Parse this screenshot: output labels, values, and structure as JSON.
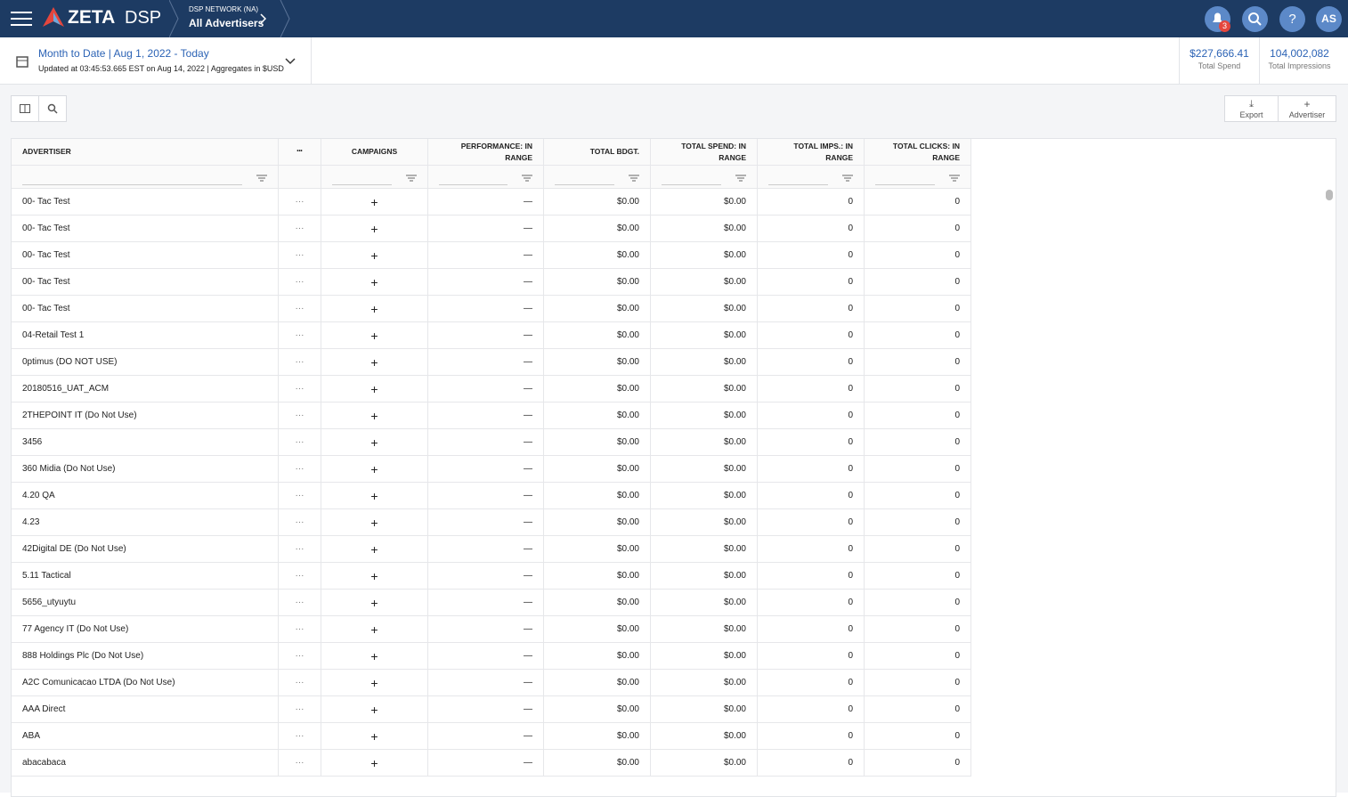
{
  "header": {
    "brand": "ZETA",
    "product": "DSP",
    "network": "DSP NETWORK (NA)",
    "scope": "All Advertisers",
    "notifications": "3",
    "help": "?",
    "avatar": "AS"
  },
  "subheader": {
    "range_name": "Month to Date",
    "range_dates": "Aug 1, 2022 - Today",
    "updated": "Updated at 03:45:53.665 EST on Aug 14, 2022 | Aggregates in $USD",
    "stats": [
      {
        "value": "$227,666.41",
        "label": "Total Spend"
      },
      {
        "value": "104,002,082",
        "label": "Total Impressions"
      }
    ]
  },
  "toolbar": {
    "export": "Export",
    "add": "Advertiser"
  },
  "table": {
    "columns": [
      "ADVERTISER",
      "CAMPAIGNS",
      "PERFORMANCE: IN RANGE",
      "TOTAL BDGT.",
      "TOTAL SPEND: IN RANGE",
      "TOTAL IMPS.: IN RANGE",
      "TOTAL CLICKS: IN RANGE"
    ],
    "rows": [
      [
        "00- Tac Test",
        "—",
        "$0.00",
        "$0.00",
        "0",
        "0"
      ],
      [
        "00- Tac Test",
        "—",
        "$0.00",
        "$0.00",
        "0",
        "0"
      ],
      [
        "00- Tac Test",
        "—",
        "$0.00",
        "$0.00",
        "0",
        "0"
      ],
      [
        "00- Tac Test",
        "—",
        "$0.00",
        "$0.00",
        "0",
        "0"
      ],
      [
        "00- Tac Test",
        "—",
        "$0.00",
        "$0.00",
        "0",
        "0"
      ],
      [
        "04-Retail Test 1",
        "—",
        "$0.00",
        "$0.00",
        "0",
        "0"
      ],
      [
        "0ptimus (DO NOT USE)",
        "—",
        "$0.00",
        "$0.00",
        "0",
        "0"
      ],
      [
        "20180516_UAT_ACM",
        "—",
        "$0.00",
        "$0.00",
        "0",
        "0"
      ],
      [
        "2THEPOINT IT (Do Not Use)",
        "—",
        "$0.00",
        "$0.00",
        "0",
        "0"
      ],
      [
        "3456",
        "—",
        "$0.00",
        "$0.00",
        "0",
        "0"
      ],
      [
        "360 Midia (Do Not Use)",
        "—",
        "$0.00",
        "$0.00",
        "0",
        "0"
      ],
      [
        "4.20 QA",
        "—",
        "$0.00",
        "$0.00",
        "0",
        "0"
      ],
      [
        "4.23",
        "—",
        "$0.00",
        "$0.00",
        "0",
        "0"
      ],
      [
        "42Digital DE (Do Not Use)",
        "—",
        "$0.00",
        "$0.00",
        "0",
        "0"
      ],
      [
        "5.11 Tactical",
        "—",
        "$0.00",
        "$0.00",
        "0",
        "0"
      ],
      [
        "5656_utyuytu",
        "—",
        "$0.00",
        "$0.00",
        "0",
        "0"
      ],
      [
        "77 Agency IT (Do Not Use)",
        "—",
        "$0.00",
        "$0.00",
        "0",
        "0"
      ],
      [
        "888 Holdings Plc (Do Not Use)",
        "—",
        "$0.00",
        "$0.00",
        "0",
        "0"
      ],
      [
        "A2C Comunicacao LTDA (Do Not Use)",
        "—",
        "$0.00",
        "$0.00",
        "0",
        "0"
      ],
      [
        "AAA Direct",
        "—",
        "$0.00",
        "$0.00",
        "0",
        "0"
      ],
      [
        "ABA",
        "—",
        "$0.00",
        "$0.00",
        "0",
        "0"
      ],
      [
        "abacabaca",
        "—",
        "$0.00",
        "$0.00",
        "0",
        "0"
      ]
    ]
  }
}
